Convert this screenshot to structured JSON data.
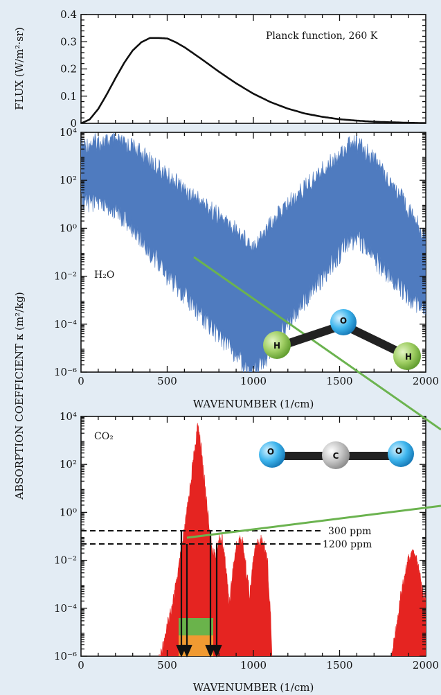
{
  "chart_data": [
    {
      "type": "line",
      "ylabel": "FLUX (W/m²·sr)",
      "annotation": "Planck function, 260 K",
      "xlim": [
        0,
        2000
      ],
      "ylim": [
        0,
        0.4
      ],
      "y_ticks": [
        "0",
        "0.1",
        "0.2",
        "0.3",
        "0.4"
      ],
      "series": [
        {
          "x": [
            0,
            50,
            100,
            150,
            200,
            250,
            300,
            350,
            400,
            450,
            500,
            550,
            600,
            650,
            700,
            750,
            800,
            900,
            1000,
            1100,
            1200,
            1300,
            1400,
            1500,
            1600,
            1700,
            1800,
            1900,
            2000
          ],
          "y": [
            0.0,
            0.014,
            0.053,
            0.107,
            0.166,
            0.222,
            0.268,
            0.298,
            0.314,
            0.314,
            0.312,
            0.298,
            0.28,
            0.258,
            0.236,
            0.213,
            0.19,
            0.147,
            0.109,
            0.078,
            0.054,
            0.036,
            0.024,
            0.015,
            0.01,
            0.006,
            0.004,
            0.002,
            0.001
          ]
        }
      ]
    },
    {
      "type": "area",
      "ylabel": "ABSORPTION COEFFICIENT κ (m²/kg)",
      "xlabel": "WAVENUMBER (1/cm)",
      "annotation": "H₂O",
      "xlim": [
        0,
        2000
      ],
      "ylim_log10": [
        -6,
        4
      ],
      "x_ticks": [
        "0",
        "500",
        "1000",
        "1500",
        "2000"
      ],
      "y_ticks": [
        "10⁻⁶",
        "10⁻⁴",
        "10⁻²",
        "10⁰",
        "10²",
        "10⁴"
      ],
      "color": "#4f7bbf",
      "envelope_upper_log10": {
        "x": [
          0,
          100,
          200,
          300,
          400,
          500,
          600,
          700,
          800,
          900,
          950,
          1000,
          1050,
          1100,
          1200,
          1300,
          1400,
          1500,
          1550,
          1600,
          1650,
          1700,
          1800,
          1900,
          2000
        ],
        "y": [
          3.8,
          4.0,
          4.0,
          3.8,
          3.2,
          2.6,
          2.0,
          1.5,
          0.9,
          0.3,
          0.0,
          -0.3,
          0.1,
          0.6,
          1.4,
          2.1,
          2.8,
          3.5,
          3.9,
          3.9,
          3.6,
          3.3,
          2.3,
          1.2,
          0.0
        ]
      },
      "envelope_lower_log10": {
        "x": [
          0,
          100,
          200,
          300,
          400,
          500,
          600,
          700,
          800,
          900,
          950,
          1000,
          1050,
          1100,
          1200,
          1300,
          1400,
          1500,
          1550,
          1600,
          1650,
          1700,
          1800,
          1900,
          2000
        ],
        "y": [
          1.6,
          1.5,
          1.2,
          0.5,
          -0.5,
          -1.5,
          -2.3,
          -3.2,
          -4.0,
          -4.8,
          -5.3,
          -5.6,
          -5.2,
          -4.6,
          -3.5,
          -2.5,
          -1.6,
          -0.6,
          -0.1,
          0.0,
          -0.4,
          -0.8,
          -1.6,
          -2.4,
          -3.0
        ]
      }
    },
    {
      "type": "area",
      "xlabel": "WAVENUMBER (1/cm)",
      "annotation": "CO₂",
      "xlim": [
        0,
        2000
      ],
      "ylim_log10": [
        -6,
        4
      ],
      "x_ticks": [
        "0",
        "500",
        "1000",
        "1500",
        "2000"
      ],
      "y_ticks": [
        "10⁻⁶",
        "10⁻⁴",
        "10⁻²",
        "10⁰",
        "10²",
        "10⁴"
      ],
      "color": "#e52421",
      "envelope_upper_log10": {
        "x": [
          450,
          500,
          550,
          580,
          600,
          620,
          640,
          660,
          670,
          680,
          690,
          700,
          720,
          740,
          760,
          780,
          800,
          820,
          840,
          860,
          880,
          900,
          920,
          940,
          960,
          980,
          1000,
          1020,
          1040,
          1060,
          1080,
          1100,
          1110
        ],
        "y": [
          -6.0,
          -4.5,
          -2.8,
          -1.5,
          -0.5,
          0.6,
          1.8,
          2.9,
          3.5,
          3.9,
          3.4,
          2.7,
          1.3,
          0.0,
          -1.2,
          -1.6,
          -0.8,
          -0.9,
          -2.0,
          -3.5,
          -2.2,
          -1.2,
          -0.8,
          -1.0,
          -2.2,
          -3.2,
          -1.6,
          -1.0,
          -0.9,
          -1.0,
          -1.6,
          -4.0,
          -6.0
        ]
      },
      "envelope_upper_log10_band2": {
        "x": [
          1800,
          1820,
          1840,
          1860,
          1880,
          1900,
          1920,
          1940,
          1960,
          1980,
          2000
        ],
        "y": [
          -6.0,
          -4.8,
          -4.0,
          -3.0,
          -2.2,
          -1.7,
          -1.5,
          -1.6,
          -2.2,
          -2.9,
          -3.4
        ]
      },
      "concentration_lines": [
        {
          "label": "300 ppm",
          "log10_kappa": -0.6
        },
        {
          "label": "1200 ppm",
          "log10_kappa": -1.2
        }
      ],
      "band_edges_cm": [
        585,
        745,
        605,
        795
      ],
      "band_widening_colors": {
        "300ppm": "#6ab34b",
        "1200ppm": "#f09a32"
      }
    }
  ],
  "molecule_labels": {
    "h_left": "H",
    "o_h2o": "O",
    "h_right": "H",
    "o_left": "O",
    "c": "C",
    "o_right": "O"
  }
}
